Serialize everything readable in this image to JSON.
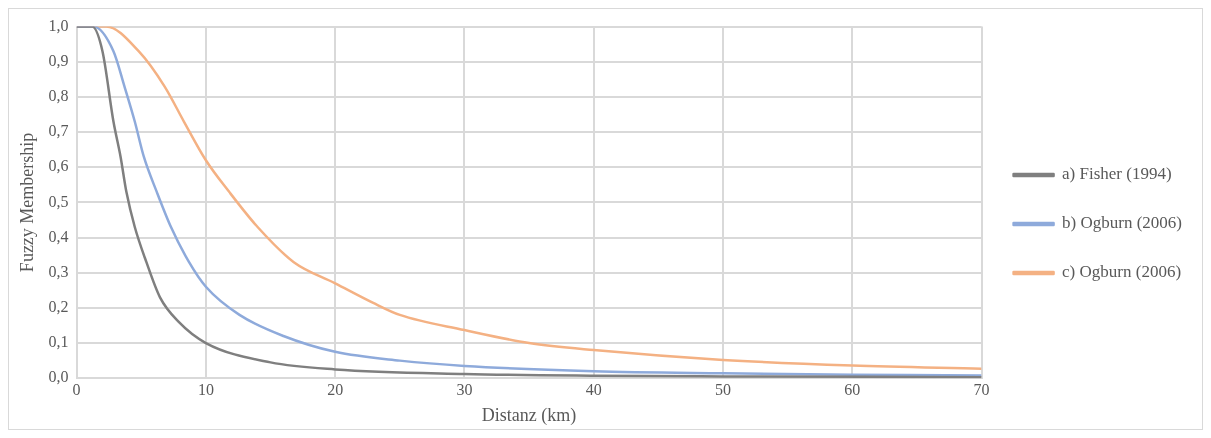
{
  "chart_data": {
    "type": "line",
    "xlabel": "Distanz (km)",
    "ylabel": "Fuzzy Membership",
    "xlim": [
      0,
      70
    ],
    "xticks": [
      0,
      10,
      20,
      30,
      40,
      50,
      60,
      70
    ],
    "ylim": [
      0,
      1
    ],
    "yticks": [
      {
        "value": 0,
        "label": "0,0"
      },
      {
        "value": 0.1,
        "label": "0,1"
      },
      {
        "value": 0.2,
        "label": "0,2"
      },
      {
        "value": 0.3,
        "label": "0,3"
      },
      {
        "value": 0.4,
        "label": "0,4"
      },
      {
        "value": 0.5,
        "label": "0,5"
      },
      {
        "value": 0.6,
        "label": "0,6"
      },
      {
        "value": 0.7,
        "label": "0,7"
      },
      {
        "value": 0.8,
        "label": "0,8"
      },
      {
        "value": 0.9,
        "label": "0,9"
      },
      {
        "value": 1,
        "label": "1,0"
      }
    ],
    "grid": true,
    "legend": "right",
    "marker": "none",
    "line_style": "solid",
    "series": [
      {
        "name": "a) Fisher (1994)",
        "color": "#7f7f7f",
        "x": [
          0,
          1.2,
          2,
          2.85,
          3.4,
          3.85,
          4.5,
          5.4,
          6.45,
          7.9,
          10,
          15,
          20,
          30,
          40,
          50,
          70
        ],
        "values": [
          1,
          1,
          0.93,
          0.73,
          0.63,
          0.53,
          0.43,
          0.33,
          0.23,
          0.16,
          0.1,
          0.045,
          0.025,
          0.012,
          0.007,
          0.005,
          0.003
        ]
      },
      {
        "name": "b) Ogburn (2006)",
        "color": "#8eaadb",
        "x": [
          0,
          1.3,
          2.85,
          3.7,
          4.5,
          5.2,
          6.2,
          7.3,
          8.7,
          10,
          12.6,
          16,
          20,
          25,
          30,
          40,
          50,
          60,
          70
        ],
        "values": [
          1,
          1,
          0.93,
          0.83,
          0.73,
          0.63,
          0.53,
          0.43,
          0.33,
          0.26,
          0.18,
          0.12,
          0.075,
          0.05,
          0.035,
          0.02,
          0.014,
          0.01,
          0.008
        ]
      },
      {
        "name": "c) Ogburn (2006)",
        "color": "#f4b183",
        "x": [
          0,
          2.3,
          4.8,
          6.8,
          8.3,
          10,
          11.8,
          14,
          16.8,
          20,
          22.9,
          25,
          30,
          35,
          40,
          50,
          60,
          70
        ],
        "values": [
          1,
          1,
          0.93,
          0.83,
          0.73,
          0.62,
          0.53,
          0.43,
          0.33,
          0.27,
          0.215,
          0.18,
          0.137,
          0.1,
          0.08,
          0.052,
          0.036,
          0.027
        ]
      }
    ]
  }
}
